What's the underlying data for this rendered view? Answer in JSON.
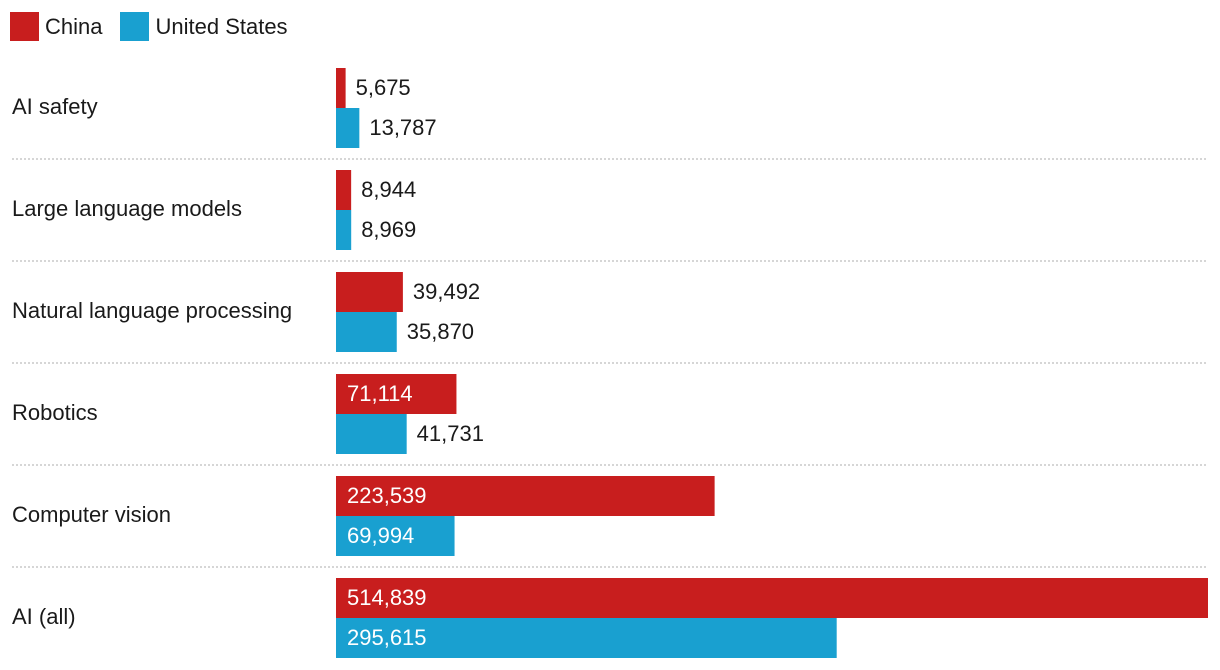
{
  "chart_data": {
    "type": "bar",
    "orientation": "horizontal",
    "categories": [
      "AI safety",
      "Large language models",
      "Natural language processing",
      "Robotics",
      "Computer vision",
      "AI (all)"
    ],
    "series": [
      {
        "name": "China",
        "color": "#c81e1e",
        "values": [
          5675,
          8944,
          39492,
          71114,
          223539,
          514839
        ],
        "labels": [
          "5,675",
          "8,944",
          "39,492",
          "71,114",
          "223,539",
          "514,839"
        ]
      },
      {
        "name": "United States",
        "color": "#19a0d0",
        "values": [
          13787,
          8969,
          35870,
          41731,
          69994,
          295615
        ],
        "labels": [
          "13,787",
          "8,969",
          "35,870",
          "41,731",
          "69,994",
          "295,615"
        ]
      }
    ],
    "xlim": [
      0,
      514839
    ],
    "legend": "top-left",
    "grid": false,
    "separator_style": "dotted"
  }
}
